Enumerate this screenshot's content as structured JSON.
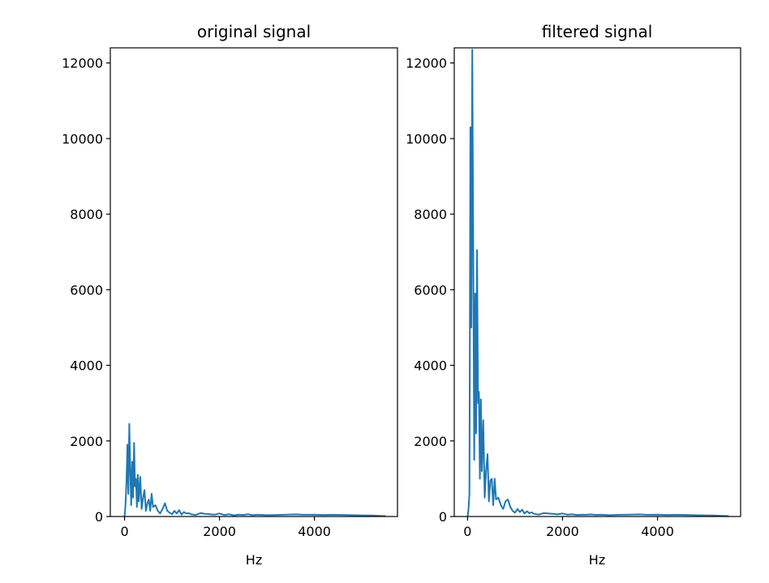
{
  "chart_data": [
    {
      "type": "line",
      "title": "original signal",
      "xlabel": "Hz",
      "ylabel": "",
      "xlim": [
        -300,
        5750
      ],
      "ylim": [
        0,
        12400
      ],
      "xticks": [
        0,
        2000,
        4000
      ],
      "xtick_labels": [
        "0",
        "2000",
        "4000"
      ],
      "yticks": [
        0,
        2000,
        4000,
        6000,
        8000,
        10000,
        12000
      ],
      "ytick_labels": [
        "0",
        "2000",
        "4000",
        "6000",
        "8000",
        "10000",
        "12000"
      ],
      "grid": false,
      "series": [
        {
          "color": "#1f77b4",
          "x": [
            0,
            20,
            40,
            60,
            80,
            100,
            120,
            140,
            160,
            180,
            200,
            220,
            240,
            260,
            280,
            300,
            330,
            360,
            390,
            420,
            450,
            480,
            510,
            540,
            570,
            600,
            650,
            700,
            750,
            800,
            850,
            900,
            950,
            1000,
            1050,
            1100,
            1150,
            1200,
            1250,
            1300,
            1350,
            1400,
            1500,
            1600,
            1700,
            1800,
            1900,
            2000,
            2100,
            2200,
            2300,
            2400,
            2500,
            2600,
            2700,
            2800,
            2900,
            3000,
            3200,
            3400,
            3600,
            3800,
            4000,
            4200,
            4400,
            4600,
            4800,
            5000,
            5200,
            5400,
            5500
          ],
          "y": [
            0,
            300,
            900,
            1900,
            600,
            2450,
            1200,
            300,
            1450,
            500,
            1950,
            800,
            1000,
            250,
            1100,
            400,
            1050,
            200,
            500,
            700,
            150,
            350,
            450,
            150,
            600,
            250,
            300,
            150,
            80,
            200,
            350,
            150,
            100,
            60,
            150,
            80,
            170,
            50,
            120,
            80,
            90,
            60,
            40,
            90,
            70,
            60,
            50,
            80,
            40,
            60,
            30,
            50,
            40,
            60,
            35,
            50,
            40,
            35,
            40,
            50,
            55,
            45,
            50,
            40,
            45,
            40,
            35,
            30,
            25,
            15,
            10
          ]
        }
      ]
    },
    {
      "type": "line",
      "title": "filtered signal",
      "xlabel": "Hz",
      "ylabel": "",
      "xlim": [
        -280,
        5750
      ],
      "ylim": [
        0,
        12400
      ],
      "xticks": [
        0,
        2000,
        4000
      ],
      "xtick_labels": [
        "0",
        "2000",
        "4000"
      ],
      "yticks": [
        0,
        2000,
        4000,
        6000,
        8000,
        10000,
        12000
      ],
      "ytick_labels": [
        "0",
        "2000",
        "4000",
        "6000",
        "8000",
        "10000",
        "12000"
      ],
      "grid": false,
      "series": [
        {
          "color": "#1f77b4",
          "x": [
            0,
            20,
            40,
            60,
            80,
            100,
            120,
            140,
            160,
            180,
            200,
            220,
            240,
            260,
            280,
            300,
            330,
            360,
            390,
            420,
            450,
            480,
            510,
            540,
            570,
            600,
            650,
            700,
            750,
            800,
            850,
            900,
            950,
            1000,
            1050,
            1100,
            1150,
            1200,
            1250,
            1300,
            1350,
            1400,
            1500,
            1600,
            1700,
            1800,
            1900,
            2000,
            2100,
            2200,
            2300,
            2400,
            2500,
            2600,
            2700,
            2800,
            2900,
            3000,
            3200,
            3400,
            3600,
            3800,
            4000,
            4200,
            4400,
            4600,
            4800,
            5000,
            5200,
            5400,
            5500
          ],
          "y": [
            0,
            200,
            600,
            10300,
            5000,
            12350,
            7100,
            1500,
            5900,
            2200,
            7050,
            3000,
            3300,
            1000,
            3100,
            1200,
            2550,
            500,
            1200,
            1650,
            400,
            950,
            1000,
            300,
            1000,
            450,
            500,
            300,
            200,
            400,
            450,
            250,
            150,
            100,
            200,
            120,
            180,
            80,
            140,
            90,
            110,
            70,
            50,
            90,
            80,
            70,
            60,
            80,
            50,
            60,
            40,
            50,
            45,
            55,
            40,
            50,
            40,
            35,
            45,
            50,
            55,
            45,
            50,
            40,
            45,
            40,
            35,
            30,
            25,
            15,
            10
          ]
        }
      ]
    }
  ]
}
